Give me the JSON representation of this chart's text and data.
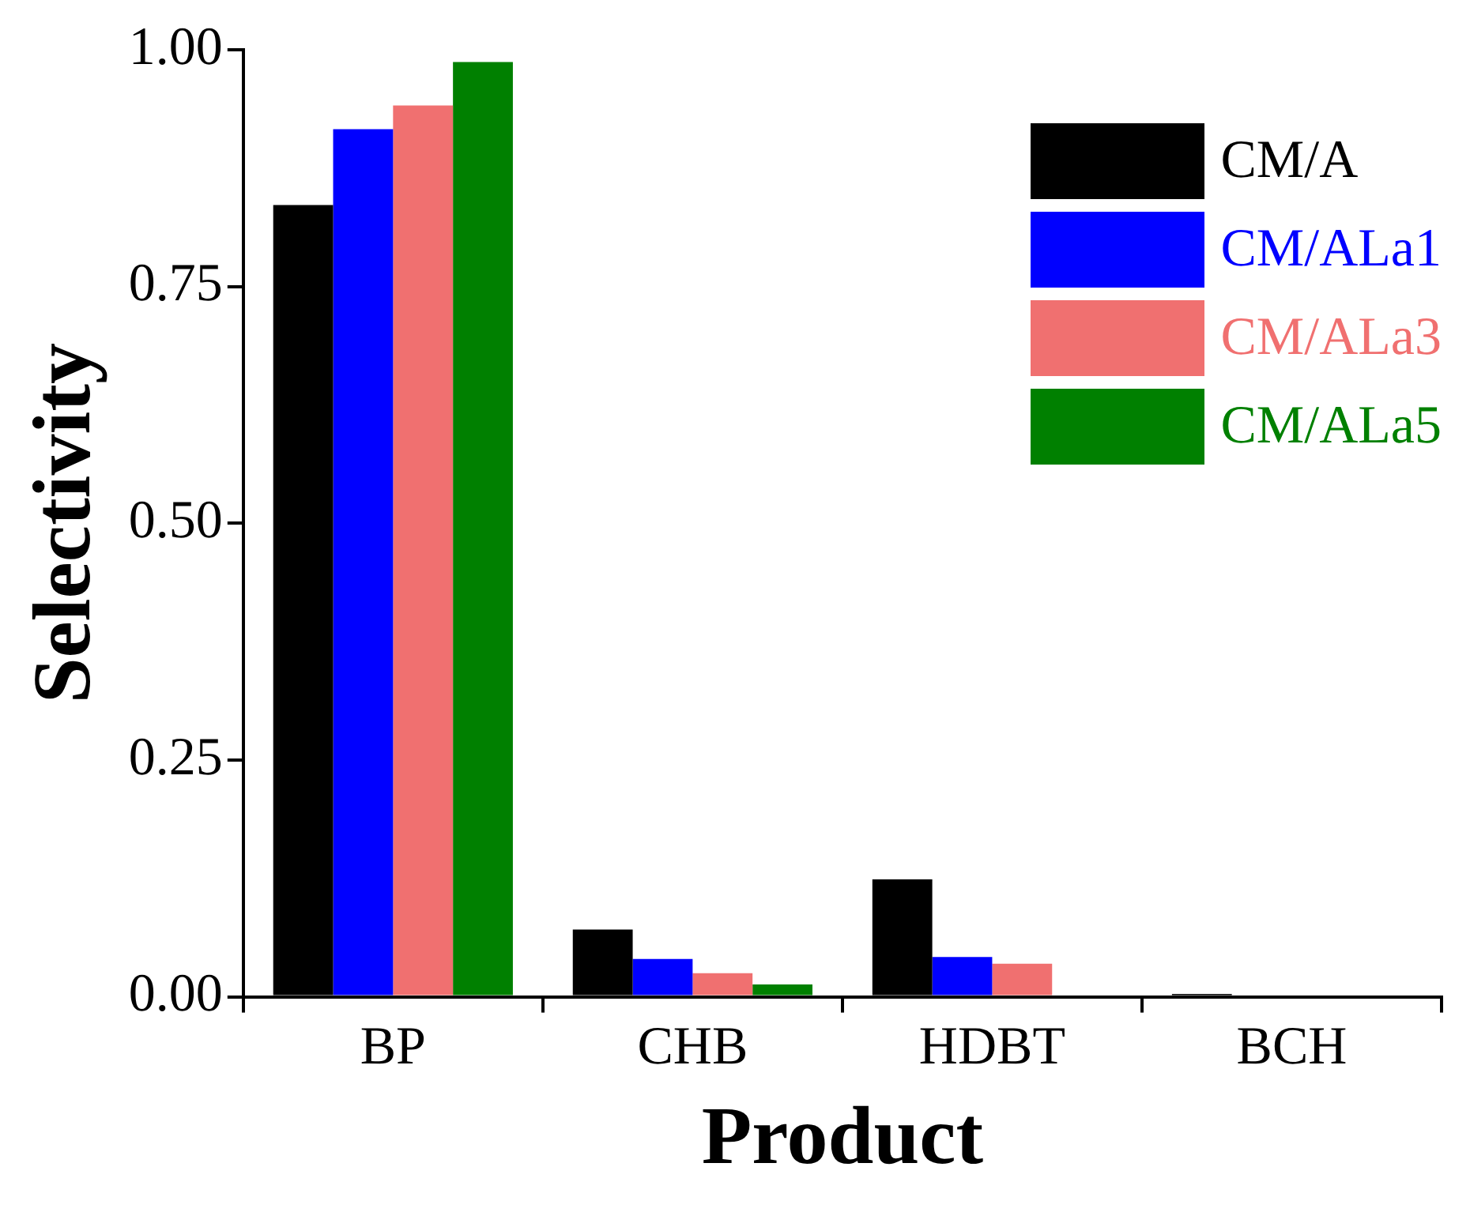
{
  "chart_data": {
    "type": "bar",
    "xlabel": "Product",
    "ylabel": "Selectivity",
    "categories": [
      "BP",
      "CHB",
      "HDBT",
      "BCH"
    ],
    "series": [
      {
        "name": "CM/A",
        "color": "#000000",
        "values": [
          0.836,
          0.071,
          0.124,
          0.003
        ]
      },
      {
        "name": "CM/ALa1",
        "color": "#0000ff",
        "values": [
          0.916,
          0.04,
          0.042,
          0
        ]
      },
      {
        "name": "CM/ALa3",
        "color": "#f07070",
        "values": [
          0.941,
          0.025,
          0.035,
          0
        ]
      },
      {
        "name": "CM/ALa5",
        "color": "#008000",
        "values": [
          0.987,
          0.013,
          0,
          0
        ]
      }
    ],
    "ylim": [
      0,
      1
    ],
    "yticks": [
      {
        "value": 0,
        "label": "0.00"
      },
      {
        "value": 0.25,
        "label": "0.25"
      },
      {
        "value": 0.5,
        "label": "0.50"
      },
      {
        "value": 0.75,
        "label": "0.75"
      },
      {
        "value": 1,
        "label": "1.00"
      }
    ],
    "grid": false,
    "legend": "top right"
  }
}
